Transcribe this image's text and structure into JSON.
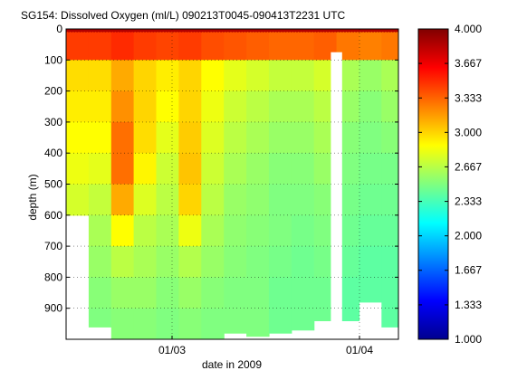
{
  "chart_data": {
    "type": "heatmap",
    "title": "SG154: Dissolved Oxygen (ml/L) 090213T0045-090413T2231 UTC",
    "xlabel": "date in 2009",
    "ylabel": "depth (m)",
    "x_ticks": [
      "01/03",
      "01/04"
    ],
    "y_ticks": [
      0,
      100,
      200,
      300,
      400,
      500,
      600,
      700,
      800,
      900
    ],
    "ylim": [
      0,
      1000
    ],
    "y_reversed": true,
    "grid": "dotted",
    "colorbar": {
      "ticks": [
        "1.000",
        "1.333",
        "1.667",
        "2.000",
        "2.333",
        "2.667",
        "3.000",
        "3.333",
        "3.667",
        "4.000"
      ],
      "range": [
        1,
        4
      ],
      "colormap": "jet",
      "placement": "right"
    },
    "x_range": [
      "2009-02-13",
      "2009-04-13"
    ],
    "columns": [
      {
        "date": "2009-02-13",
        "max_depth": 600
      },
      {
        "date": "2009-02-17",
        "max_depth": 960
      },
      {
        "date": "2009-02-21",
        "max_depth": 1000
      },
      {
        "date": "2009-02-25",
        "max_depth": 1000
      },
      {
        "date": "2009-03-01",
        "max_depth": 1000
      },
      {
        "date": "2009-03-05",
        "max_depth": 1000
      },
      {
        "date": "2009-03-09",
        "max_depth": 1000
      },
      {
        "date": "2009-03-13",
        "max_depth": 980
      },
      {
        "date": "2009-03-17",
        "max_depth": 990
      },
      {
        "date": "2009-03-21",
        "max_depth": 980
      },
      {
        "date": "2009-03-25",
        "max_depth": 970
      },
      {
        "date": "2009-03-29",
        "max_depth": 940
      },
      {
        "date": "2009-04-02",
        "max_depth": 940
      },
      {
        "date": "2009-04-06",
        "max_depth": 880
      },
      {
        "date": "2009-04-10",
        "max_depth": 960
      }
    ],
    "depth_levels": [
      0,
      100,
      200,
      300,
      400,
      500,
      600,
      700,
      800,
      900,
      1000
    ],
    "values": [
      [
        3.9,
        3.0,
        2.95,
        2.9,
        2.85,
        2.8,
        2.7,
        2.6,
        2.55,
        2.5,
        2.5
      ],
      [
        3.9,
        3.0,
        2.95,
        2.9,
        2.85,
        2.75,
        2.65,
        2.6,
        2.55,
        2.5,
        2.5
      ],
      [
        3.9,
        3.1,
        3.15,
        3.25,
        3.35,
        3.25,
        3.0,
        2.75,
        2.6,
        2.55,
        2.5
      ],
      [
        3.9,
        3.0,
        3.0,
        3.0,
        2.95,
        2.85,
        2.7,
        2.65,
        2.6,
        2.55,
        2.5
      ],
      [
        3.9,
        2.95,
        2.9,
        2.85,
        2.75,
        2.7,
        2.65,
        2.6,
        2.55,
        2.5,
        2.5
      ],
      [
        3.9,
        3.0,
        3.0,
        3.0,
        3.05,
        3.05,
        2.95,
        2.7,
        2.6,
        2.55,
        2.5
      ],
      [
        3.9,
        2.9,
        2.85,
        2.8,
        2.75,
        2.7,
        2.65,
        2.6,
        2.55,
        2.5,
        2.5
      ],
      [
        3.9,
        2.85,
        2.75,
        2.7,
        2.65,
        2.6,
        2.55,
        2.55,
        2.5,
        2.5,
        2.5
      ],
      [
        3.9,
        2.8,
        2.7,
        2.65,
        2.6,
        2.55,
        2.55,
        2.5,
        2.5,
        2.5,
        2.5
      ],
      [
        3.9,
        2.75,
        2.65,
        2.6,
        2.55,
        2.5,
        2.5,
        2.5,
        2.45,
        2.45,
        2.45
      ],
      [
        3.9,
        2.75,
        2.65,
        2.6,
        2.55,
        2.5,
        2.5,
        2.45,
        2.45,
        2.45,
        2.45
      ],
      [
        3.9,
        2.8,
        2.7,
        2.65,
        2.6,
        2.55,
        2.5,
        2.5,
        2.45,
        2.45,
        2.45
      ],
      [
        3.9,
        2.65,
        2.6,
        2.55,
        2.5,
        2.5,
        2.45,
        2.45,
        2.4,
        2.4,
        2.4
      ],
      [
        3.9,
        2.6,
        2.55,
        2.5,
        2.5,
        2.45,
        2.45,
        2.4,
        2.4,
        2.4,
        2.4
      ],
      [
        3.9,
        2.65,
        2.6,
        2.55,
        2.5,
        2.45,
        2.45,
        2.4,
        2.4,
        2.4,
        2.4
      ]
    ],
    "gaps": [
      {
        "from": "2009-04-01",
        "to": "2009-04-03",
        "depth_from": 75,
        "depth_to": 1000
      }
    ]
  }
}
